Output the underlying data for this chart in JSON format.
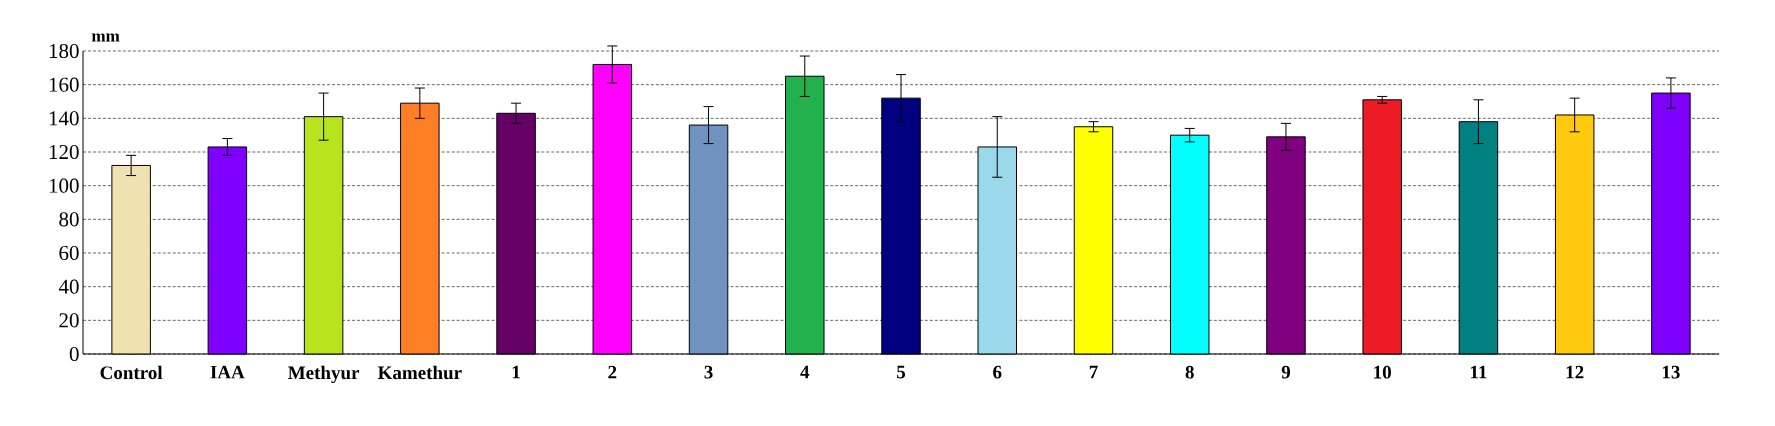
{
  "chart_data": {
    "type": "bar",
    "ylabel": "mm",
    "categories": [
      "Control",
      "IAA",
      "Methyur",
      "Kamethur",
      "1",
      "2",
      "3",
      "4",
      "5",
      "6",
      "7",
      "8",
      "9",
      "10",
      "11",
      "12",
      "13"
    ],
    "values": [
      112,
      123,
      141,
      149,
      143,
      172,
      136,
      165,
      152,
      123,
      135,
      130,
      129,
      151,
      138,
      142,
      155
    ],
    "errors": [
      6,
      5,
      14,
      9,
      6,
      11,
      11,
      12,
      14,
      18,
      3,
      4,
      8,
      2,
      13,
      10,
      9
    ],
    "colors": [
      "#f0e2b0",
      "#8000ff",
      "#b8e41e",
      "#ff7f27",
      "#660066",
      "#ff00ff",
      "#7092be",
      "#22b14c",
      "#000080",
      "#99d9ea",
      "#ffff00",
      "#00ffff",
      "#800080",
      "#ed1c24",
      "#008080",
      "#ffc90e",
      "#8000ff"
    ],
    "ylim": [
      0,
      180
    ],
    "yticks": [
      0,
      20,
      40,
      60,
      80,
      100,
      120,
      140,
      160,
      180
    ],
    "grid": "y"
  }
}
